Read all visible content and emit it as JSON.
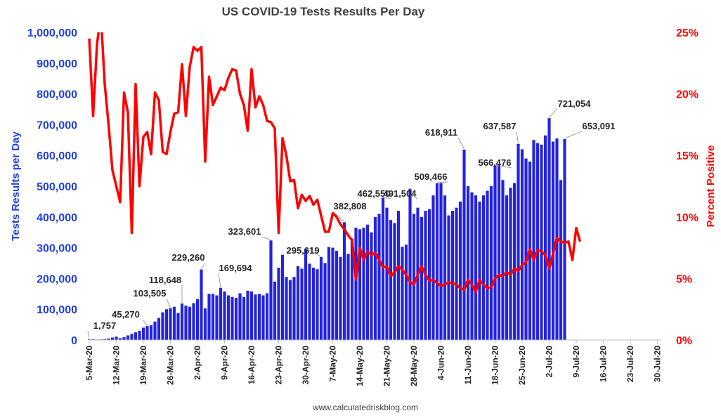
{
  "chart_data": {
    "type": "bar",
    "title": "US COVID-19 Tests Results Per Day",
    "source": "www.calculatedriskblog.com",
    "ylabel": "Tests Results per Day",
    "y2label": "Percent Positive",
    "ylim": [
      0,
      1000000
    ],
    "y2lim": [
      0,
      25
    ],
    "yticks": [
      "0",
      "100,000",
      "200,000",
      "300,000",
      "400,000",
      "500,000",
      "600,000",
      "700,000",
      "800,000",
      "900,000",
      "1,000,000"
    ],
    "y2ticks": [
      "0%",
      "5%",
      "10%",
      "15%",
      "20%",
      "25%"
    ],
    "xlim": [
      "2020-03-05",
      "2020-07-31"
    ],
    "xticks": [
      "5-Mar-20",
      "12-Mar-20",
      "19-Mar-20",
      "26-Mar-20",
      "2-Apr-20",
      "9-Apr-20",
      "16-Apr-20",
      "23-Apr-20",
      "30-Apr-20",
      "7-May-20",
      "14-May-20",
      "21-May-20",
      "28-May-20",
      "4-Jun-20",
      "11-Jun-20",
      "18-Jun-20",
      "25-Jun-20",
      "2-Jul-20",
      "9-Jul-20",
      "16-Jul-20",
      "23-Jul-20",
      "30-Jul-20"
    ],
    "grid": false,
    "colors": {
      "bars": "#2323e0",
      "line": "#ff0000",
      "axis_left": "#1f3fe0",
      "axis_right": "#ff0000"
    },
    "series": [
      {
        "name": "Tests Results per Day",
        "kind": "bar",
        "start_date": "2020-03-05",
        "values": [
          1757,
          2500,
          1500,
          2000,
          3000,
          5000,
          8000,
          11000,
          6000,
          9000,
          15000,
          20000,
          25000,
          30000,
          40000,
          45270,
          48000,
          60000,
          72000,
          90000,
          100000,
          103505,
          108000,
          88000,
          118648,
          112000,
          108000,
          120000,
          133000,
          229260,
          103000,
          150000,
          150000,
          145000,
          169694,
          158000,
          145000,
          140000,
          137000,
          152000,
          140000,
          160000,
          158000,
          148000,
          150000,
          145000,
          152000,
          323601,
          190000,
          235000,
          277000,
          205000,
          195000,
          205000,
          240000,
          232000,
          295619,
          248000,
          235000,
          230000,
          270000,
          250000,
          302000,
          300000,
          290000,
          270000,
          382808,
          280000,
          330000,
          365000,
          360000,
          365000,
          375000,
          350000,
          400000,
          410000,
          462550,
          430000,
          390000,
          380000,
          420000,
          303000,
          310000,
          491504,
          410000,
          430000,
          400000,
          420000,
          425000,
          470000,
          509466,
          510000,
          470000,
          405000,
          420000,
          430000,
          450000,
          618911,
          500000,
          480000,
          470000,
          450000,
          470000,
          485000,
          500000,
          566476,
          570000,
          520000,
          470000,
          495000,
          510000,
          637587,
          620000,
          590000,
          580000,
          650000,
          640000,
          635000,
          665000,
          721054,
          645000,
          655000,
          520000,
          653091
        ]
      },
      {
        "name": "Percent Positive",
        "kind": "line",
        "start_date": "2020-03-05",
        "values": [
          24.5,
          18.2,
          24.0,
          26.5,
          20.8,
          17.5,
          13.8,
          12.5,
          11.2,
          20.1,
          18.5,
          8.7,
          20.8,
          12.5,
          16.5,
          16.9,
          15.1,
          20.1,
          19.5,
          15.3,
          15.1,
          16.9,
          18.4,
          18.5,
          22.4,
          18.2,
          22.2,
          23.8,
          23.5,
          23.8,
          14.5,
          21.4,
          19.1,
          19.8,
          20.5,
          20.3,
          21.3,
          22.0,
          21.9,
          20.0,
          19.1,
          17.0,
          22.0,
          18.9,
          19.8,
          19.1,
          17.8,
          17.7,
          17.2,
          8.7,
          16.4,
          15.0,
          12.9,
          13.0,
          10.7,
          11.8,
          11.3,
          11.7,
          11.0,
          11.4,
          10.1,
          8.8,
          8.8,
          10.3,
          10.0,
          9.4,
          9.0,
          8.5,
          8.1,
          4.9,
          7.5,
          6.5,
          7.2,
          6.9,
          7.1,
          6.5,
          5.9,
          6.0,
          5.2,
          5.5,
          6.0,
          5.7,
          5.3,
          4.7,
          4.5,
          5.3,
          6.0,
          5.3,
          4.8,
          4.9,
          4.6,
          4.4,
          4.5,
          4.7,
          4.6,
          4.5,
          4.2,
          4.1,
          4.9,
          4.5,
          3.9,
          4.9,
          4.5,
          4.2,
          4.3,
          5.0,
          5.3,
          5.2,
          5.5,
          5.3,
          5.8,
          5.6,
          6.1,
          6.3,
          7.4,
          6.5,
          7.3,
          7.2,
          6.9,
          5.8,
          7.0,
          8.3,
          8.0,
          7.9,
          8.0,
          6.5,
          9.1,
          8.0
        ]
      }
    ],
    "annotations": [
      "1,757",
      "45,270",
      "103,505",
      "118,648",
      "229,260",
      "169,694",
      "323,601",
      "295,619",
      "382,808",
      "462,550",
      "491,504",
      "509,466",
      "618,911",
      "566,476",
      "637,587",
      "721,054",
      "653,091"
    ]
  }
}
